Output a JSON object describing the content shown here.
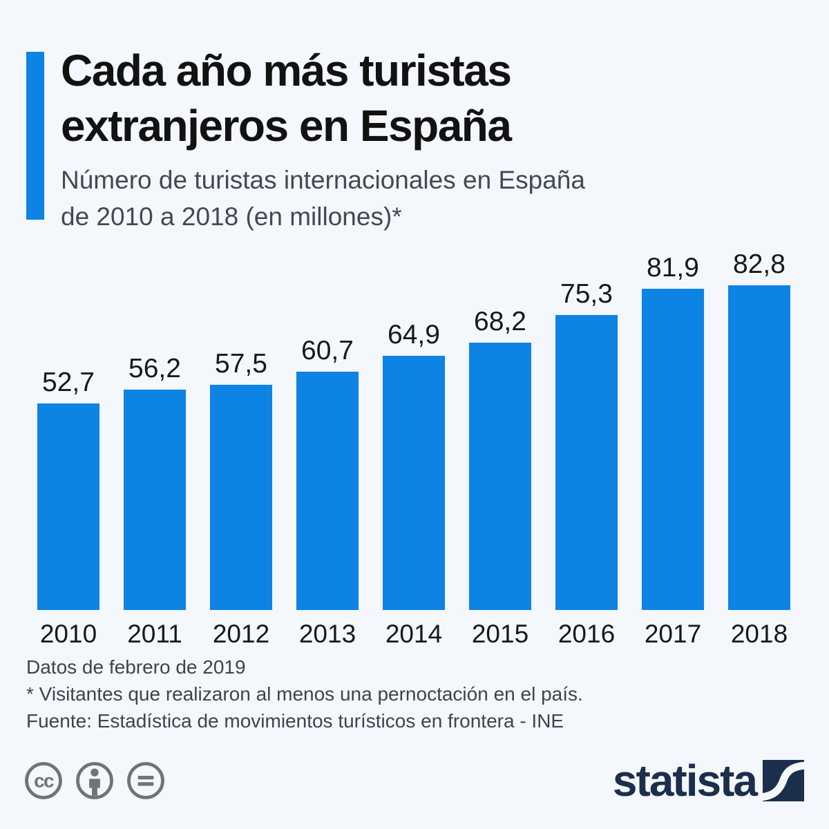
{
  "header": {
    "title_line1": "Cada año más turistas",
    "title_line2": "extranjeros en España",
    "subtitle_line1": "Número de turistas internacionales en España",
    "subtitle_line2": "de 2010 a 2018 (en millones)*"
  },
  "chart_data": {
    "type": "bar",
    "title": "Cada año más turistas extranjeros en España",
    "subtitle": "Número de turistas internacionales en España de 2010 a 2018 (en millones)*",
    "categories": [
      "2010",
      "2011",
      "2012",
      "2013",
      "2014",
      "2015",
      "2016",
      "2017",
      "2018"
    ],
    "values": [
      52.7,
      56.2,
      57.5,
      60.7,
      64.9,
      68.2,
      75.3,
      81.9,
      82.8
    ],
    "value_labels": [
      "52,7",
      "56,2",
      "57,5",
      "60,7",
      "64,9",
      "68,2",
      "75,3",
      "81,9",
      "82,8"
    ],
    "xlabel": "",
    "ylabel": "",
    "ylim": [
      0,
      90
    ],
    "grid": false,
    "legend": false,
    "data_labels": true,
    "bar_color": "#0d83e4",
    "decimal_separator": ","
  },
  "footer": {
    "line1": "Datos de febrero de 2019",
    "line2": "* Visitantes que realizaron al menos una pernoctación en el país.",
    "line3": "Fuente: Estadística de movimientos turísticos en frontera - INE"
  },
  "branding": {
    "logo_text": "statista",
    "license_icons": [
      "cc-icon",
      "attribution-person-icon",
      "no-derivatives-equals-icon"
    ]
  },
  "colors": {
    "background": "#f4f7fb",
    "bar": "#0d83e4",
    "accent_bar": "#0d83e4",
    "title": "#121212",
    "subtitle": "#414a52",
    "footer_text": "#3d444b",
    "license_gray": "#6e7572",
    "logo_navy": "#1b2e4b"
  }
}
